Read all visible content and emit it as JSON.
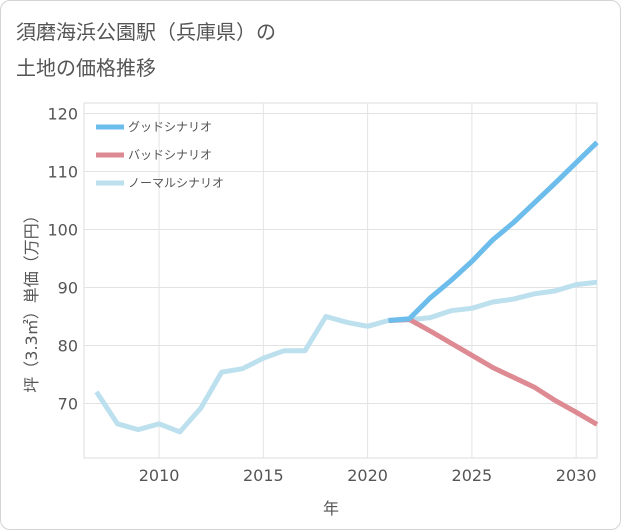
{
  "title": {
    "line1": "須磨海浜公園駅（兵庫県）の",
    "line2": "土地の価格推移"
  },
  "chart_data": {
    "type": "line",
    "xlabel": "年",
    "ylabel": "坪（3.3㎡）単価（万円）",
    "xlim": [
      2006.4,
      2031
    ],
    "ylim": [
      60.6,
      121.8
    ],
    "x_ticks": [
      2010,
      2015,
      2020,
      2025,
      2030
    ],
    "y_ticks": [
      70,
      80,
      90,
      100,
      110,
      120
    ],
    "grid": true,
    "legend_position": "top-left",
    "series": [
      {
        "name": "グッドシナリオ",
        "color": "#6cbcec",
        "x": [
          2021,
          2022,
          2023,
          2024,
          2025,
          2026,
          2027,
          2028,
          2029,
          2030,
          2031
        ],
        "y": [
          84.3,
          84.6,
          88.2,
          91.2,
          94.5,
          98.2,
          101.2,
          104.6,
          108.0,
          111.5,
          115.0
        ]
      },
      {
        "name": "バッドシナリオ",
        "color": "#de8a93",
        "x": [
          2021,
          2022,
          2023,
          2024,
          2025,
          2026,
          2027,
          2028,
          2029,
          2030,
          2031
        ],
        "y": [
          84.3,
          84.5,
          82.5,
          80.4,
          78.3,
          76.2,
          74.5,
          72.8,
          70.5,
          68.5,
          66.4
        ]
      },
      {
        "name": "ノーマルシナリオ",
        "color": "#bde0ee",
        "x": [
          2007,
          2008,
          2009,
          2010,
          2011,
          2012,
          2013,
          2014,
          2015,
          2016,
          2017,
          2018,
          2019,
          2020,
          2021,
          2022,
          2023,
          2024,
          2025,
          2026,
          2027,
          2028,
          2029,
          2030,
          2031
        ],
        "y": [
          72.0,
          66.5,
          65.5,
          66.5,
          65.1,
          69.2,
          75.4,
          76.0,
          77.8,
          79.1,
          79.1,
          85.0,
          84.0,
          83.3,
          84.3,
          84.4,
          84.8,
          86.0,
          86.4,
          87.5,
          88.0,
          88.9,
          89.4,
          90.5,
          90.9
        ]
      }
    ]
  }
}
